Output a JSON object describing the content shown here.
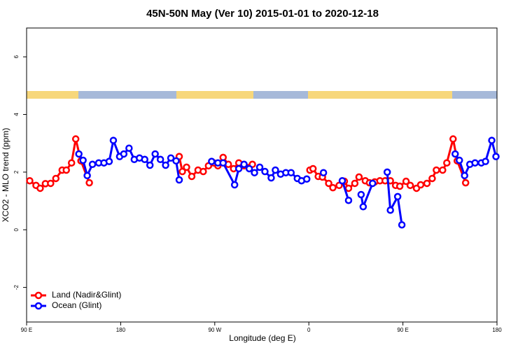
{
  "chart_data": {
    "type": "line",
    "title": "45N-50N May (Ver 10)   2015-01-01 to 2020-12-18",
    "x_label": "Longitude (deg E)",
    "y_label": "XCO2 - MLO trend (ppm)",
    "xlim": [
      90,
      540
    ],
    "xticks": [
      {
        "value": 90,
        "label": "90 E"
      },
      {
        "value": 180,
        "label": "180"
      },
      {
        "value": 270,
        "label": "90 W"
      },
      {
        "value": 360,
        "label": "0"
      },
      {
        "value": 450,
        "label": "90 E"
      },
      {
        "value": 540,
        "label": "180"
      }
    ],
    "ylim": [
      -3.2,
      7
    ],
    "yticks": [
      -2,
      0,
      2,
      4,
      6
    ],
    "legend": "bottom-left",
    "series": [
      {
        "name": "Land (Nadir&Glint)",
        "color": "#ff0000",
        "x": [
          93,
          99,
          103,
          108,
          113,
          118,
          124,
          128,
          133,
          137,
          142,
          150,
          190,
          236,
          239,
          243,
          248,
          254,
          259,
          264,
          269,
          273,
          278,
          283,
          288,
          293,
          298,
          306,
          330,
          361,
          364,
          369,
          373,
          379,
          383,
          389,
          394,
          398,
          404,
          408,
          414,
          418,
          423,
          428,
          433,
          438,
          443,
          447,
          453,
          457,
          463,
          467,
          473,
          478,
          482,
          488,
          492,
          498,
          502,
          510
        ],
        "values": [
          1.7,
          1.54,
          1.44,
          1.6,
          1.61,
          1.78,
          2.07,
          2.07,
          2.32,
          3.15,
          2.39,
          1.63,
          null,
          2.54,
          2.02,
          2.17,
          1.85,
          2.07,
          2.02,
          2.22,
          2.32,
          2.22,
          2.51,
          2.27,
          2.12,
          2.32,
          2.22,
          2.27,
          null,
          2.07,
          2.12,
          1.85,
          1.83,
          1.61,
          1.46,
          1.54,
          1.68,
          1.44,
          1.61,
          1.83,
          1.7,
          1.63,
          1.66,
          1.7,
          1.7,
          1.7,
          1.54,
          1.51,
          1.68,
          1.54,
          1.44,
          1.56,
          1.61,
          1.78,
          2.07,
          2.07,
          2.32,
          3.15,
          2.39,
          1.63
        ]
      },
      {
        "name": "Ocean (Glint)",
        "color": "#0000ff",
        "x": [
          140,
          144,
          148,
          153,
          159,
          164,
          169,
          173,
          179,
          183,
          188,
          193,
          198,
          203,
          208,
          213,
          218,
          223,
          228,
          233,
          236,
          250,
          267,
          273,
          278,
          289,
          293,
          298,
          303,
          308,
          313,
          318,
          324,
          328,
          333,
          338,
          343,
          349,
          353,
          358,
          365,
          374,
          385,
          392,
          398,
          405,
          410,
          412,
          421,
          428,
          435,
          438,
          445,
          449,
          470,
          500,
          504,
          509,
          514,
          519,
          525,
          529,
          535,
          539
        ],
        "values": [
          2.63,
          2.41,
          1.88,
          2.27,
          2.32,
          2.32,
          2.37,
          3.1,
          2.54,
          2.63,
          2.83,
          2.44,
          2.49,
          2.44,
          2.24,
          2.63,
          2.44,
          2.24,
          2.49,
          2.39,
          1.73,
          null,
          2.37,
          2.32,
          2.32,
          1.56,
          2.12,
          2.27,
          2.12,
          1.98,
          2.17,
          2.02,
          1.8,
          2.07,
          1.93,
          1.98,
          1.98,
          1.78,
          1.7,
          1.76,
          null,
          1.98,
          null,
          1.7,
          1.02,
          null,
          1.22,
          0.8,
          1.61,
          null,
          2.0,
          0.68,
          1.15,
          0.17,
          null,
          2.63,
          2.41,
          1.88,
          2.27,
          2.32,
          2.32,
          2.37,
          3.1,
          2.54
        ]
      }
    ]
  }
}
